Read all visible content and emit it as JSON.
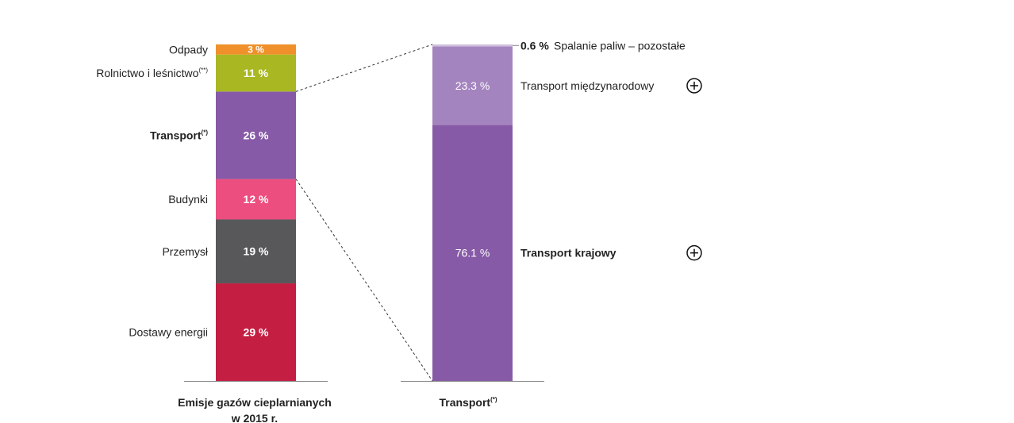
{
  "chart_data": [
    {
      "type": "bar",
      "subtype": "stacked-100",
      "xlabel_lines": [
        "Emisje gazów cieplarnianych",
        "w 2015 r."
      ],
      "ylim": [
        0,
        100
      ],
      "grid": false,
      "segments": [
        {
          "name": "Dostawy energii",
          "sup": "",
          "value": 29,
          "label": "29 %",
          "color": "#c41f43",
          "bold": false
        },
        {
          "name": "Przemysł",
          "sup": "",
          "value": 19,
          "label": "19 %",
          "color": "#58585b",
          "bold": false
        },
        {
          "name": "Budynki",
          "sup": "",
          "value": 12,
          "label": "12 %",
          "color": "#ec4e7f",
          "bold": false
        },
        {
          "name": "Transport",
          "sup": "(*)",
          "value": 26,
          "label": "26 %",
          "color": "#865aa6",
          "bold": true
        },
        {
          "name": "Rolnictwo i leśnictwo",
          "sup": "(**)",
          "value": 11,
          "label": "11 %",
          "color": "#a8b722",
          "bold": false
        },
        {
          "name": "Odpady",
          "sup": "",
          "value": 3,
          "label": "3 %",
          "color": "#f0902a",
          "bold": false
        }
      ]
    },
    {
      "type": "bar",
      "subtype": "stacked-100",
      "xlabel": "Transport",
      "xlabel_sup": "(*)",
      "ylim": [
        0,
        100
      ],
      "grid": false,
      "segments": [
        {
          "name": "Transport krajowy",
          "value": 76.1,
          "label": "76.1 %",
          "color": "#865aa6",
          "bold": true,
          "expand_icon": true
        },
        {
          "name": "Transport międzynarodowy",
          "value": 23.3,
          "label": "23.3 %",
          "color": "#a484bf",
          "bold": false,
          "expand_icon": true
        },
        {
          "name": "Spalanie paliw – pozostałe",
          "value": 0.6,
          "label": "0.6 %",
          "color": "#cfc0dc",
          "bold": false,
          "expand_icon": false
        }
      ]
    }
  ],
  "icons": {
    "expand": "circle-plus-icon"
  }
}
